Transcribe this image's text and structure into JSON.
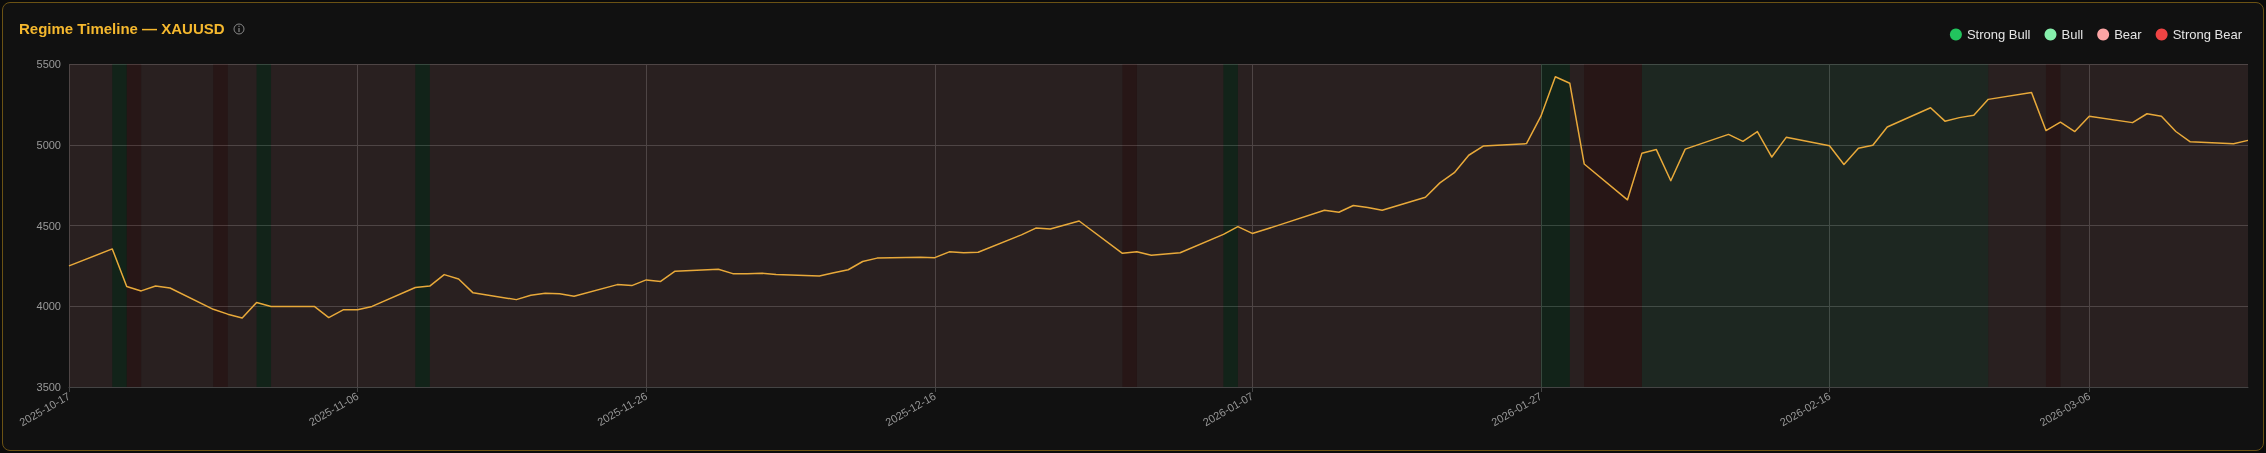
{
  "chart_data": {
    "type": "line",
    "title": "Regime Timeline — XAUUSD",
    "x": [
      "2025-10-17",
      "2025-10-20",
      "2025-10-21",
      "2025-10-22",
      "2025-10-23",
      "2025-10-24",
      "2025-10-27",
      "2025-10-28",
      "2025-10-29",
      "2025-10-30",
      "2025-10-31",
      "2025-11-03",
      "2025-11-04",
      "2025-11-05",
      "2025-11-06",
      "2025-11-07",
      "2025-11-10",
      "2025-11-11",
      "2025-11-12",
      "2025-11-13",
      "2025-11-14",
      "2025-11-17",
      "2025-11-18",
      "2025-11-19",
      "2025-11-20",
      "2025-11-21",
      "2025-11-24",
      "2025-11-25",
      "2025-11-26",
      "2025-11-27",
      "2025-11-28",
      "2025-12-01",
      "2025-12-02",
      "2025-12-03",
      "2025-12-04",
      "2025-12-05",
      "2025-12-08",
      "2025-12-09",
      "2025-12-10",
      "2025-12-11",
      "2025-12-12",
      "2025-12-15",
      "2025-12-16",
      "2025-12-17",
      "2025-12-18",
      "2025-12-19",
      "2025-12-22",
      "2025-12-23",
      "2025-12-24",
      "2025-12-26",
      "2025-12-29",
      "2025-12-30",
      "2025-12-31",
      "2026-01-02",
      "2026-01-05",
      "2026-01-06",
      "2026-01-07",
      "2026-01-08",
      "2026-01-09",
      "2026-01-12",
      "2026-01-13",
      "2026-01-14",
      "2026-01-15",
      "2026-01-16",
      "2026-01-19",
      "2026-01-20",
      "2026-01-21",
      "2026-01-22",
      "2026-01-23",
      "2026-01-26",
      "2026-01-27",
      "2026-01-28",
      "2026-01-29",
      "2026-01-30",
      "2026-02-02",
      "2026-02-03",
      "2026-02-04",
      "2026-02-05",
      "2026-02-06",
      "2026-02-09",
      "2026-02-10",
      "2026-02-11",
      "2026-02-12",
      "2026-02-13",
      "2026-02-16",
      "2026-02-17",
      "2026-02-18",
      "2026-02-19",
      "2026-02-20",
      "2026-02-23",
      "2026-02-24",
      "2026-02-25",
      "2026-02-26",
      "2026-02-27",
      "2026-03-02",
      "2026-03-03",
      "2026-03-04",
      "2026-03-05",
      "2026-03-06",
      "2026-03-09",
      "2026-03-10",
      "2026-03-11",
      "2026-03-12",
      "2026-03-13",
      "2026-03-16",
      "2026-03-17"
    ],
    "series": [
      {
        "color": "#e8a93a",
        "values": [
          4250,
          4355,
          4122,
          4095,
          4125,
          4113,
          3981,
          3951,
          3927,
          4023,
          3999,
          3999,
          3930,
          3978,
          3978,
          3999,
          4116,
          4125,
          4196,
          4169,
          4083,
          4041,
          4068,
          4080,
          4077,
          4062,
          4134,
          4128,
          4163,
          4154,
          4217,
          4229,
          4202,
          4202,
          4205,
          4196,
          4187,
          4208,
          4226,
          4277,
          4298,
          4304,
          4301,
          4337,
          4331,
          4334,
          4442,
          4484,
          4478,
          4528,
          4328,
          4337,
          4316,
          4331,
          4445,
          4493,
          4451,
          4478,
          4507,
          4594,
          4582,
          4624,
          4612,
          4594,
          4675,
          4764,
          4827,
          4935,
          4992,
          5007,
          5177,
          5421,
          5381,
          4881,
          4659,
          4948,
          4970,
          4777,
          4973,
          5064,
          5021,
          5082,
          4924,
          5046,
          4994,
          4878,
          4979,
          4997,
          5110,
          5229,
          5146,
          5168,
          5183,
          5281,
          5323,
          5088,
          5140,
          5082,
          5177,
          5137,
          5192,
          5177,
          5082,
          5018,
          5006,
          5027
        ]
      }
    ],
    "bands": [
      {
        "axis": "x",
        "from": "2025-10-20",
        "to": "2025-10-21",
        "label": "Strong Bull",
        "color": "#22c55e"
      },
      {
        "axis": "x",
        "from": "2026-02-03",
        "to": "2026-02-27",
        "label": "Bull",
        "color": "#86efac"
      },
      {
        "axis": "x",
        "from": "2025-10-17",
        "to": "2025-10-20",
        "label": "Bear",
        "color": "#fca5a5"
      },
      {
        "axis": "x",
        "from": "2025-10-21",
        "to": "2025-10-22",
        "label": "Strong Bear",
        "color": "#ef4444"
      },
      {
        "axis": "x",
        "from": "2025-10-22",
        "to": "2025-10-27",
        "color": "#fca5a5"
      },
      {
        "axis": "x",
        "from": "2025-10-27",
        "to": "2025-10-28",
        "color": "#ef4444"
      },
      {
        "axis": "x",
        "from": "2025-10-28",
        "to": "2025-10-30",
        "color": "#fca5a5"
      },
      {
        "axis": "x",
        "from": "2025-10-30",
        "to": "2025-10-31",
        "color": "#22c55e"
      },
      {
        "axis": "x",
        "from": "2025-10-31",
        "to": "2025-11-10",
        "color": "#fca5a5"
      },
      {
        "axis": "x",
        "from": "2025-11-10",
        "to": "2025-11-11",
        "color": "#22c55e"
      },
      {
        "axis": "x",
        "from": "2025-11-11",
        "to": "2025-12-29",
        "color": "#fca5a5"
      },
      {
        "axis": "x",
        "from": "2025-12-29",
        "to": "2025-12-30",
        "color": "#ef4444"
      },
      {
        "axis": "x",
        "from": "2025-12-30",
        "to": "2026-01-05",
        "color": "#fca5a5"
      },
      {
        "axis": "x",
        "from": "2026-01-05",
        "to": "2026-01-06",
        "color": "#22c55e"
      },
      {
        "axis": "x",
        "from": "2026-01-06",
        "to": "2026-01-27",
        "color": "#fca5a5"
      },
      {
        "axis": "x",
        "from": "2026-01-27",
        "to": "2026-01-29",
        "color": "#22c55e"
      },
      {
        "axis": "x",
        "from": "2026-01-29",
        "to": "2026-01-30",
        "color": "#fca5a5"
      },
      {
        "axis": "x",
        "from": "2026-01-30",
        "to": "2026-02-03",
        "color": "#ef4444"
      },
      {
        "axis": "x",
        "from": "2026-02-27",
        "to": "2026-03-03",
        "color": "#fca5a5"
      },
      {
        "axis": "x",
        "from": "2026-03-03",
        "to": "2026-03-04",
        "color": "#ef4444"
      },
      {
        "axis": "x",
        "from": "2026-03-04",
        "to": "2026-03-17",
        "color": "#fca5a5"
      }
    ],
    "xlim": [
      "2025-10-17",
      "2026-03-17"
    ],
    "xticks": [
      "2025-10-17",
      "2025-11-06",
      "2025-11-26",
      "2025-12-16",
      "2026-01-07",
      "2026-01-27",
      "2026-02-16",
      "2026-03-06"
    ],
    "ylim": [
      3500,
      5500
    ],
    "yticks": [
      3500,
      4000,
      4500,
      5000,
      5500
    ],
    "grid": true,
    "legend": "top right",
    "marker": "none"
  }
}
